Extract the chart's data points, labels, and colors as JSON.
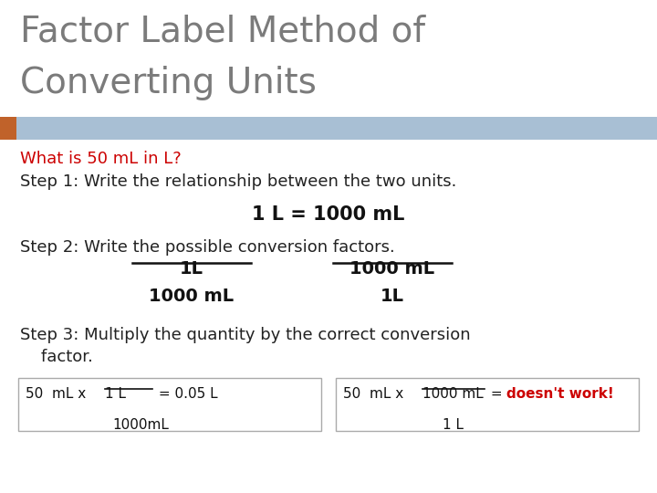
{
  "title_line1": "Factor Label Method of",
  "title_line2": "Converting Units",
  "title_color": "#7b7b7b",
  "header_bar_color": "#a8bfd4",
  "header_bar_left_accent_color": "#c0622a",
  "question_text": "What is 50 mL in L?",
  "question_color": "#cc0000",
  "step1_text": "Step 1: Write the relationship between the two units.",
  "step1_color": "#222222",
  "eq_text": "1 L = 1000 mL",
  "eq_color": "#111111",
  "step2_text": "Step 2: Write the possible conversion factors.",
  "step2_color": "#222222",
  "frac1_num": "1L",
  "frac1_den": "1000 mL",
  "frac2_num": "1000 mL",
  "frac2_den": "1L",
  "frac_color": "#111111",
  "step3_line1": "Step 3: Multiply the quantity by the correct conversion",
  "step3_line2": "    factor.",
  "step3_color": "#222222",
  "box_text_color": "#111111",
  "box_result_color": "#cc0000",
  "bg_color": "#ffffff",
  "fig_width": 7.2,
  "fig_height": 5.4,
  "dpi": 100
}
